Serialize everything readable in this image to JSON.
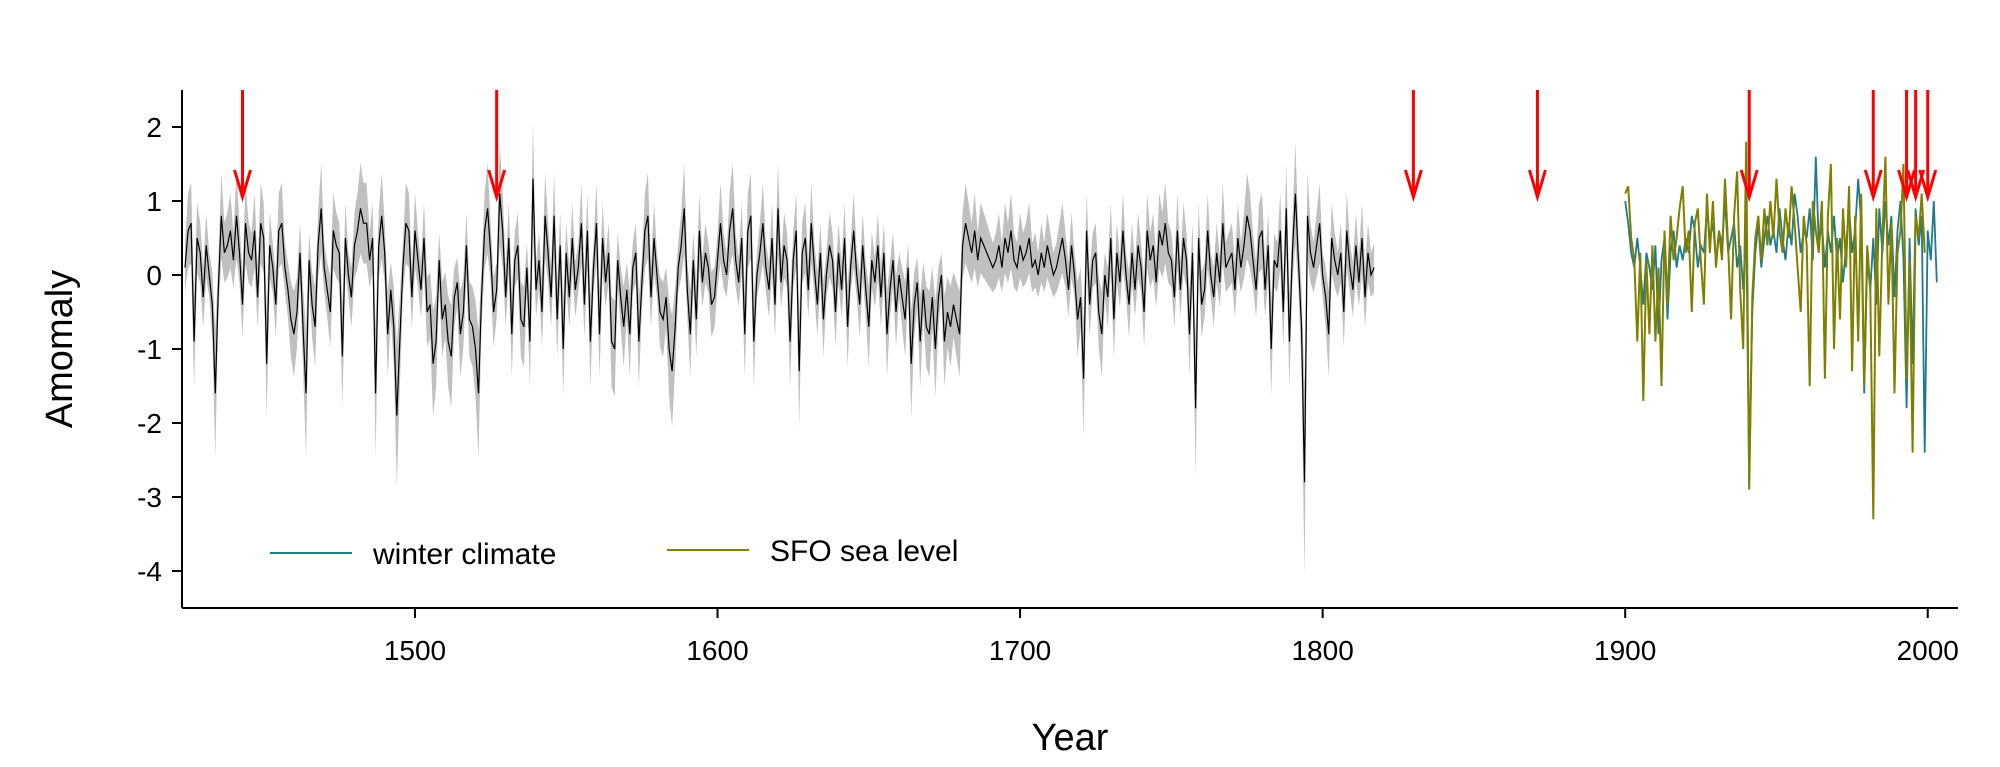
{
  "chart_data": {
    "type": "line",
    "title": "",
    "xlabel": "Year",
    "ylabel": "Amomaly",
    "xlim": [
      1423,
      2010
    ],
    "ylim": [
      -4.5,
      2.5
    ],
    "xticks": [
      1500,
      1600,
      1700,
      1800,
      1900,
      2000
    ],
    "yticks": [
      2,
      1,
      0,
      -1,
      -2,
      -3,
      -4
    ],
    "grid": false,
    "legend_position": "bottom-left",
    "legend": [
      {
        "name": "winter climate",
        "color": "#1f7a8c"
      },
      {
        "name": "SFO sea level",
        "color": "#808000"
      }
    ],
    "arrow_years": [
      1443,
      1527,
      1830,
      1871,
      1941,
      1982,
      1993,
      1996,
      2000
    ],
    "arrow_color": "#ff0000",
    "reconstruction": {
      "color": "#000000",
      "band_color": "#c0c0c0",
      "start_year": 1424,
      "values": [
        0.1,
        0.6,
        0.7,
        -0.9,
        0.5,
        0.3,
        -0.3,
        0.4,
        0.0,
        -0.4,
        -1.6,
        -0.2,
        0.8,
        0.3,
        0.4,
        0.6,
        0.2,
        0.8,
        0.3,
        -0.4,
        0.7,
        0.3,
        0.2,
        0.6,
        -0.3,
        0.7,
        0.5,
        -1.2,
        0.4,
        0.1,
        -0.4,
        0.6,
        0.7,
        0.1,
        -0.2,
        -0.6,
        -0.8,
        -0.5,
        0.3,
        -0.7,
        -1.6,
        0.2,
        -0.4,
        -0.7,
        0.4,
        0.9,
        0.1,
        -0.2,
        -0.5,
        0.6,
        0.4,
        0.3,
        -1.1,
        0.5,
        0.0,
        -0.3,
        0.4,
        0.6,
        0.9,
        0.7,
        0.7,
        0.2,
        0.5,
        -1.6,
        0.4,
        0.8,
        0.3,
        -0.8,
        -0.2,
        -0.7,
        -1.9,
        -0.9,
        0.1,
        0.7,
        0.6,
        -0.3,
        0.6,
        0.2,
        -0.2,
        0.5,
        -0.5,
        -0.4,
        -1.2,
        -0.9,
        0.2,
        -0.6,
        -0.4,
        -0.9,
        -1.1,
        -0.3,
        -0.1,
        -0.8,
        -0.5,
        0.4,
        -0.6,
        -0.7,
        -1.0,
        -1.6,
        -0.3,
        0.6,
        0.9,
        0.3,
        -0.5,
        -0.2,
        1.1,
        0.6,
        -0.3,
        0.5,
        -0.8,
        0.2,
        0.4,
        -0.6,
        -0.7,
        0.1,
        -0.9,
        1.3,
        -0.2,
        0.2,
        -0.5,
        0.8,
        0.3,
        -0.3,
        0.8,
        -0.6,
        0.4,
        -1.0,
        0.3,
        -0.3,
        0.5,
        -0.2,
        0.1,
        0.7,
        -0.4,
        0.6,
        -0.9,
        0.1,
        0.7,
        -0.8,
        0.5,
        -0.1,
        0.3,
        -0.9,
        -1.0,
        0.2,
        -0.3,
        -0.7,
        -0.2,
        -0.8,
        0.1,
        0.3,
        -0.9,
        -0.1,
        0.6,
        0.8,
        -0.3,
        0.5,
        0.0,
        -0.5,
        -0.6,
        -0.3,
        -1.0,
        -1.3,
        -0.7,
        0.1,
        0.4,
        0.9,
        -0.2,
        -0.8,
        0.2,
        -0.6,
        0.6,
        -0.1,
        0.3,
        0.1,
        -0.4,
        -0.3,
        0.2,
        0.7,
        0.2,
        0.0,
        0.6,
        0.9,
        0.2,
        -0.1,
        0.5,
        -0.8,
        0.6,
        0.8,
        -0.9,
        0.0,
        0.3,
        0.7,
        0.1,
        -0.2,
        0.5,
        -0.4,
        0.9,
        -0.1,
        0.4,
        0.2,
        -0.9,
        0.2,
        0.6,
        -1.3,
        0.3,
        0.5,
        -0.2,
        0.7,
        0.1,
        -0.4,
        0.3,
        -0.6,
        0.0,
        0.4,
        0.2,
        -0.5,
        0.3,
        -0.2,
        0.5,
        -0.7,
        0.1,
        0.6,
        0.0,
        -0.4,
        0.4,
        -0.2,
        -0.7,
        0.2,
        -0.1,
        0.4,
        -0.3,
        0.3,
        -0.8,
        -0.2,
        0.2,
        -0.5,
        0.0,
        -0.3,
        -0.6,
        0.1,
        -1.2,
        -0.4,
        -0.1,
        -0.9,
        -0.2,
        -0.7,
        -0.8,
        -0.3,
        -1.0,
        -0.3,
        0.0,
        -0.9,
        -0.5,
        -0.7,
        -0.4,
        -0.6,
        -0.8,
        0.4,
        0.7,
        0.5,
        0.3,
        0.6,
        0.2,
        0.5,
        0.4,
        0.3,
        0.2,
        0.1,
        0.2,
        0.4,
        0.1,
        0.5,
        0.3,
        0.6,
        0.2,
        0.1,
        0.4,
        0.2,
        0.3,
        0.5,
        0.1,
        0.2,
        0.0,
        0.3,
        0.1,
        0.4,
        0.2,
        0.0,
        0.1,
        0.3,
        0.5,
        0.2,
        -0.2,
        0.4,
        0.0,
        -0.6,
        -0.3,
        -1.4,
        0.6,
        -0.4,
        0.2,
        0.3,
        -0.5,
        -0.8,
        0.0,
        -0.3,
        0.5,
        -0.6,
        0.3,
        -0.1,
        0.6,
        0.0,
        -0.4,
        0.3,
        -0.2,
        0.4,
        0.1,
        -0.5,
        0.6,
        0.2,
        0.4,
        -0.1,
        0.6,
        0.4,
        0.7,
        0.3,
        0.2,
        -0.3,
        0.6,
        -0.2,
        0.5,
        0.2,
        -0.8,
        0.3,
        -1.8,
        0.5,
        -0.4,
        -0.2,
        0.6,
        0.0,
        -0.3,
        0.3,
        -0.1,
        0.7,
        0.1,
        0.2,
        0.3,
        -0.2,
        0.5,
        0.1,
        0.4,
        0.8,
        0.6,
        0.2,
        -0.2,
        0.5,
        0.6,
        -0.2,
        0.4,
        -1.0,
        0.2,
        0.1,
        0.6,
        -0.5,
        0.9,
        -0.9,
        0.3,
        1.1,
        0.2,
        -0.7,
        -2.8,
        0.8,
        0.3,
        0.1,
        0.4,
        0.7,
        0.0,
        -0.3,
        -0.8,
        0.5,
        0.2,
        0.0,
        0.3,
        -0.5,
        0.6,
        0.1,
        -0.2,
        0.4,
        -0.1,
        0.5,
        -0.3,
        0.3,
        0.0,
        0.1
      ],
      "band_halfwidth": 0.3
    },
    "series": [
      {
        "name": "winter climate",
        "color": "#1f7a8c",
        "start_year": 1900,
        "values": [
          1.0,
          0.7,
          0.3,
          0.1,
          0.5,
          0.1,
          -0.4,
          0.3,
          0.1,
          -0.2,
          0.4,
          -0.8,
          0.2,
          0.5,
          -0.6,
          0.3,
          0.6,
          0.1,
          0.4,
          0.2,
          0.5,
          0.3,
          0.8,
          0.6,
          0.1,
          0.4,
          0.3,
          0.9,
          0.5,
          0.7,
          0.2,
          0.6,
          0.4,
          1.0,
          0.3,
          0.5,
          0.7,
          0.1,
          0.4,
          -0.2,
          0.6,
          -2.8,
          -0.5,
          0.3,
          0.7,
          0.1,
          0.5,
          0.8,
          0.4,
          0.6,
          0.3,
          0.9,
          0.5,
          0.2,
          0.7,
          0.4,
          1.1,
          0.8,
          0.3,
          0.6,
          0.5,
          0.9,
          0.2,
          1.6,
          0.4,
          0.7,
          0.1,
          0.6,
          0.3,
          0.8,
          0.2,
          0.5,
          -0.1,
          0.4,
          0.9,
          0.3,
          0.6,
          1.3,
          0.7,
          -1.6,
          0.2,
          -0.2,
          0.5,
          -0.4,
          0.9,
          0.3,
          1.0,
          0.4,
          0.8,
          -0.3,
          0.6,
          1.0,
          0.2,
          -1.8,
          0.5,
          -1.2,
          0.9,
          0.4,
          0.8,
          -2.4,
          0.6,
          0.2,
          1.0,
          -0.1
        ]
      },
      {
        "name": "SFO sea level",
        "color": "#808000",
        "start_year": 1900,
        "values": [
          1.1,
          1.2,
          0.5,
          0.2,
          -0.9,
          0.3,
          -1.7,
          0.2,
          -0.8,
          0.4,
          -0.9,
          0.1,
          -1.5,
          0.6,
          -0.4,
          0.8,
          0.2,
          0.5,
          0.9,
          1.2,
          0.3,
          0.6,
          -0.5,
          0.7,
          0.9,
          0.2,
          -0.4,
          1.1,
          0.3,
          1.0,
          0.1,
          0.6,
          0.2,
          1.3,
          0.4,
          -0.6,
          0.8,
          1.4,
          -0.2,
          -1.0,
          1.8,
          -2.9,
          -0.3,
          0.5,
          0.8,
          0.2,
          0.9,
          0.4,
          1.0,
          0.5,
          1.3,
          0.6,
          0.3,
          0.9,
          0.5,
          1.2,
          0.7,
          0.1,
          -0.5,
          0.8,
          0.4,
          -1.5,
          1.0,
          0.6,
          0.3,
          1.0,
          -1.4,
          0.8,
          1.5,
          -1.0,
          0.5,
          -0.6,
          0.9,
          0.1,
          1.2,
          -1.3,
          0.8,
          -0.9,
          1.1,
          -1.5,
          0.4,
          -0.2,
          -3.3,
          0.9,
          -1.1,
          0.5,
          1.6,
          -0.4,
          0.7,
          -1.6,
          0.3,
          0.6,
          1.5,
          -1.4,
          0.2,
          -2.4,
          0.8,
          0.5,
          1.1,
          0.3
        ]
      }
    ]
  }
}
